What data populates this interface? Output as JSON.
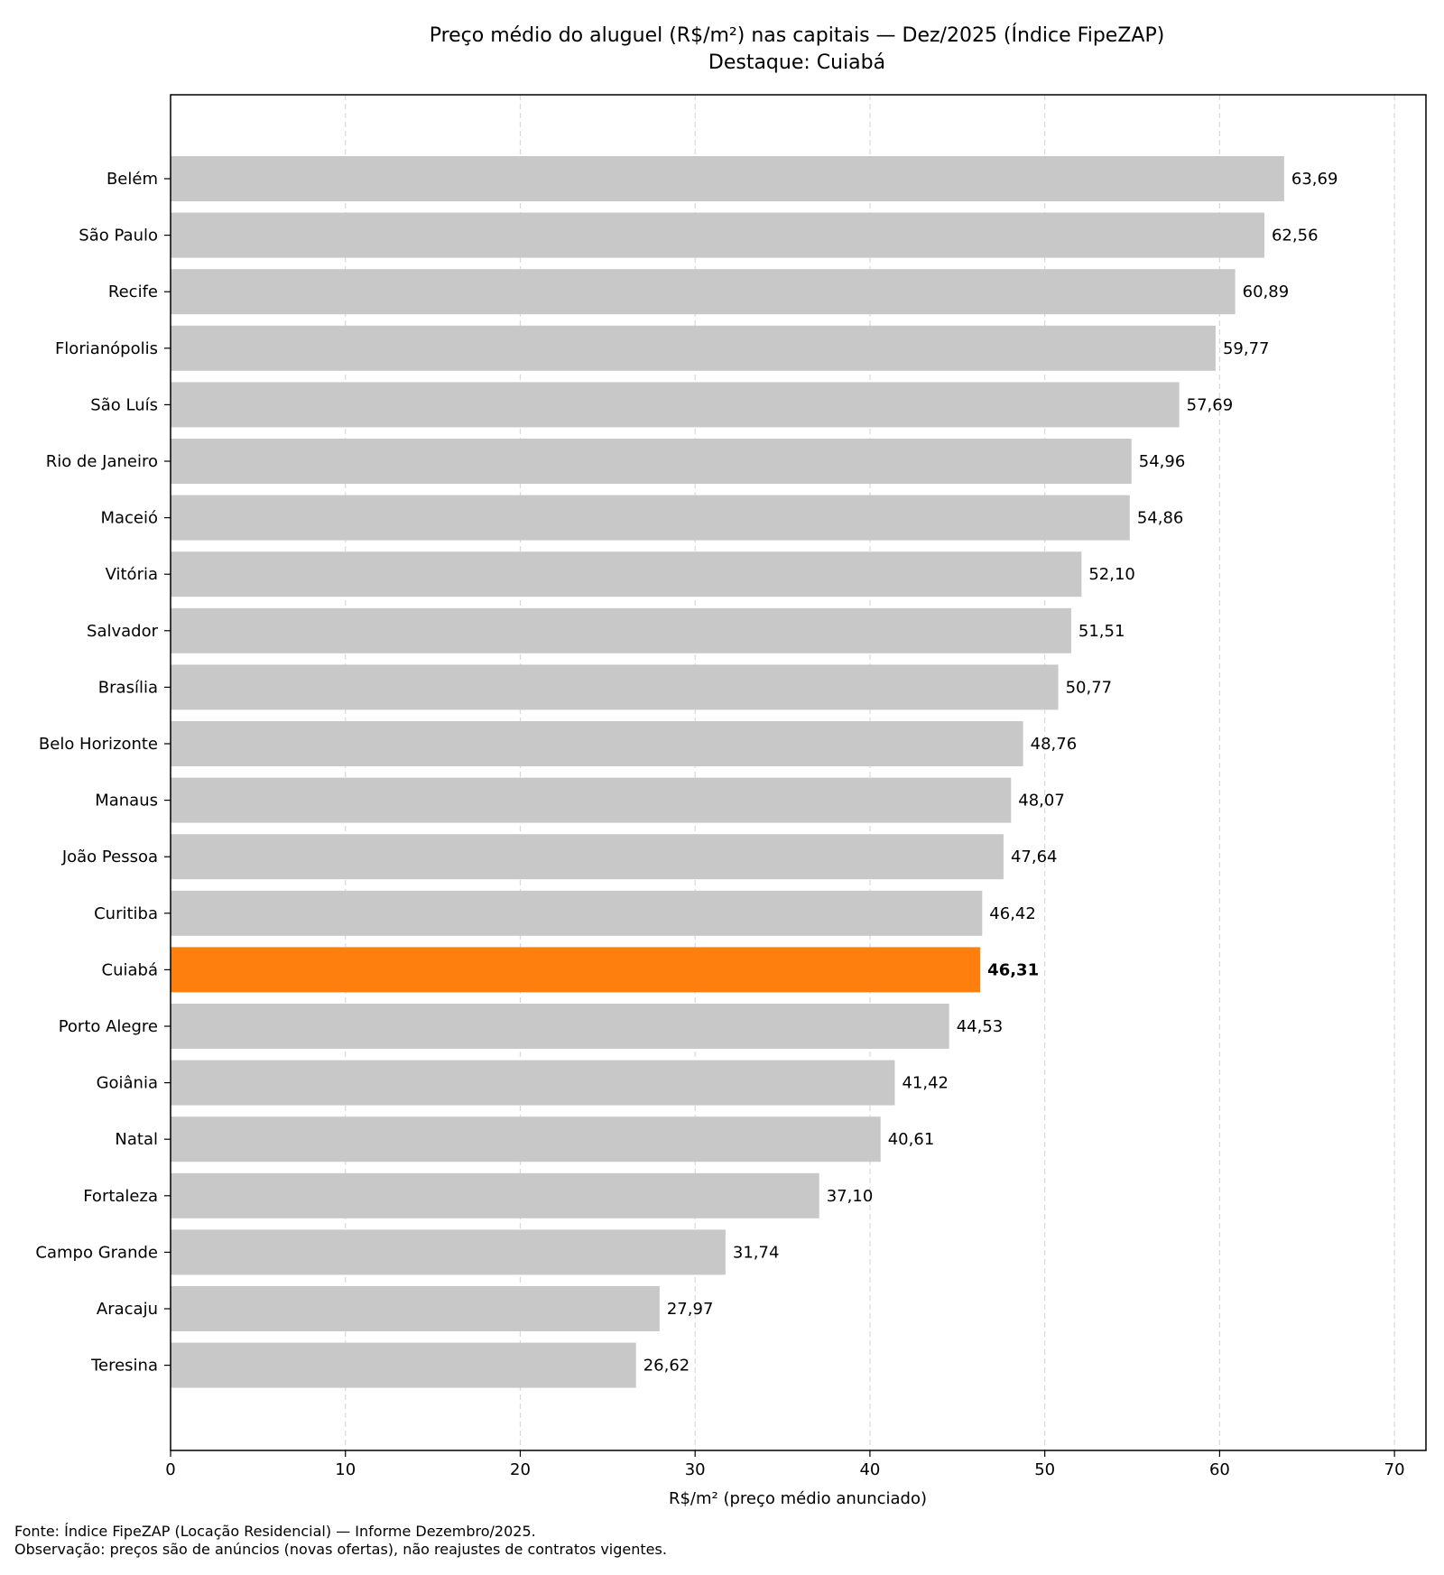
{
  "chart_data": {
    "type": "bar",
    "orientation": "horizontal",
    "title": "Preço médio do aluguel (R$/m²) nas capitais — Dez/2025 (Índice FipeZAP)",
    "subtitle": "Destaque: Cuiabá",
    "xlabel": "R$/m² (preço médio anunciado)",
    "ylabel": "",
    "xlim": [
      0,
      71.8
    ],
    "xticks": [
      0,
      10,
      20,
      30,
      40,
      50,
      60,
      70
    ],
    "grid": "vertical dashed",
    "categories": [
      "Belém",
      "São Paulo",
      "Recife",
      "Florianópolis",
      "São Luís",
      "Rio de Janeiro",
      "Maceió",
      "Vitória",
      "Salvador",
      "Brasília",
      "Belo Horizonte",
      "Manaus",
      "João Pessoa",
      "Curitiba",
      "Cuiabá",
      "Porto Alegre",
      "Goiânia",
      "Natal",
      "Fortaleza",
      "Campo Grande",
      "Aracaju",
      "Teresina"
    ],
    "values": [
      63.69,
      62.56,
      60.89,
      59.77,
      57.69,
      54.96,
      54.86,
      52.1,
      51.51,
      50.77,
      48.76,
      48.07,
      47.64,
      46.42,
      46.31,
      44.53,
      41.42,
      40.61,
      37.1,
      31.74,
      27.97,
      26.62
    ],
    "value_labels": [
      "63,69",
      "62,56",
      "60,89",
      "59,77",
      "57,69",
      "54,96",
      "54,86",
      "52,10",
      "51,51",
      "50,77",
      "48,76",
      "48,07",
      "47,64",
      "46,42",
      "46,31",
      "44,53",
      "41,42",
      "40,61",
      "37,10",
      "31,74",
      "27,97",
      "26,62"
    ],
    "highlight": "Cuiabá",
    "colors": {
      "bar": "#c8c8c8",
      "highlight": "#ff7f0e",
      "grid": "#d9d9d9"
    }
  },
  "footer": {
    "source": "Fonte: Índice FipeZAP (Locação Residencial) — Informe Dezembro/2025.",
    "note": "Observação: preços são de anúncios (novas ofertas), não reajustes de contratos vigentes."
  }
}
